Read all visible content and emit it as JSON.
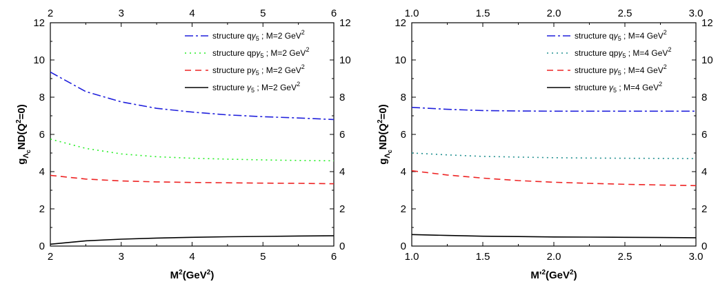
{
  "chart_data": [
    {
      "type": "line",
      "x_ticks": [
        "2",
        "3",
        "4",
        "5",
        "6"
      ],
      "y_ticks": [
        "0",
        "2",
        "4",
        "6",
        "8",
        "10",
        "12"
      ],
      "xlim": [
        2,
        6
      ],
      "ylim": [
        0,
        12
      ],
      "xlabel": {
        "main": "M",
        "sup": "2",
        "rest": "(GeV",
        "sup2": "2",
        "end": ")"
      },
      "ylabel": {
        "main": "g",
        "sub1": "Λ",
        "sub2": "c",
        "mid": "ND",
        "tail": "(Q",
        "sup": "2",
        "end": "=0)"
      },
      "legend_position": "top-right",
      "series": [
        {
          "name": "structure qγ5 ; M'=2 GeV2",
          "legend": {
            "pre": "structure q",
            "gamma": "γ",
            "g5": "5",
            "sep": " ;  ",
            "m": "M",
            "mrest": "=2 GeV",
            "msup": "2"
          },
          "color": "#1f1fdc",
          "dash": "12 4 3 4",
          "x": [
            2,
            2.5,
            3,
            3.5,
            4,
            4.5,
            5,
            5.5,
            6
          ],
          "y": [
            9.35,
            8.3,
            7.75,
            7.4,
            7.2,
            7.05,
            6.95,
            6.88,
            6.8
          ]
        },
        {
          "name": "structure qpγ5 ; M'=2 GeV2",
          "legend": {
            "pre": "structure qp",
            "gamma": "γ",
            "g5": "5",
            "sep": " ;  ",
            "m": "M",
            "mrest": "=2 GeV",
            "msup": "2"
          },
          "color": "#22ee22",
          "dash": "2 5",
          "x": [
            2,
            2.5,
            3,
            3.5,
            4,
            4.5,
            5,
            5.5,
            6
          ],
          "y": [
            5.75,
            5.25,
            4.95,
            4.8,
            4.72,
            4.67,
            4.63,
            4.6,
            4.58
          ]
        },
        {
          "name": "structure pγ5 ; M'=2 GeV2",
          "legend": {
            "pre": "structure p",
            "gamma": "γ",
            "g5": "5",
            "sep": " ;  ",
            "m": "M",
            "mrest": "=2 GeV",
            "msup": "2"
          },
          "color": "#ee2222",
          "dash": "9 6",
          "x": [
            2,
            2.5,
            3,
            3.5,
            4,
            4.5,
            5,
            5.5,
            6
          ],
          "y": [
            3.8,
            3.6,
            3.5,
            3.45,
            3.42,
            3.4,
            3.38,
            3.37,
            3.35
          ]
        },
        {
          "name": "structure γ5 ; M'=2 GeV2",
          "legend": {
            "pre": "structure ",
            "gamma": "γ",
            "g5": "5",
            "sep": " ;    ",
            "m": "M",
            "mrest": "=2 GeV",
            "msup": "2"
          },
          "color": "#000000",
          "dash": "",
          "x": [
            2,
            2.5,
            3,
            3.5,
            4,
            4.5,
            5,
            5.5,
            6
          ],
          "y": [
            0.1,
            0.28,
            0.37,
            0.43,
            0.47,
            0.5,
            0.52,
            0.54,
            0.55
          ]
        }
      ]
    },
    {
      "type": "line",
      "x_ticks": [
        "1.0",
        "1.5",
        "2.0",
        "2.5",
        "3.0"
      ],
      "y_ticks": [
        "0",
        "2",
        "4",
        "6",
        "8",
        "10",
        "12"
      ],
      "xlim": [
        1.0,
        3.0
      ],
      "ylim": [
        0,
        12
      ],
      "xlabel": {
        "main": "M'",
        "sup": "2",
        "rest": "(GeV",
        "sup2": "2",
        "end": ")"
      },
      "ylabel": {
        "main": "g",
        "sub1": "Λ",
        "sub2": "c",
        "mid": "ND",
        "tail": "(Q",
        "sup": "2",
        "end": "=0)"
      },
      "legend_position": "top-right",
      "series": [
        {
          "name": "structure qγ5 ; M=4 GeV2",
          "legend": {
            "pre": "structure q",
            "gamma": "γ",
            "g5": "5",
            "sep": " ;  ",
            "m": "M",
            "mrest": "=4 GeV",
            "msup": "2"
          },
          "color": "#1f1fdc",
          "dash": "12 4 3 4",
          "x": [
            1.0,
            1.25,
            1.5,
            1.75,
            2.0,
            2.25,
            2.5,
            2.75,
            3.0
          ],
          "y": [
            7.45,
            7.35,
            7.28,
            7.26,
            7.25,
            7.25,
            7.25,
            7.25,
            7.25
          ]
        },
        {
          "name": "structure qpγ5 ; M=4 GeV2",
          "legend": {
            "pre": "structure qp",
            "gamma": "γ",
            "g5": "5",
            "sep": " ;  ",
            "m": "M",
            "mrest": "=4 GeV",
            "msup": "2"
          },
          "color": "#1f8f8f",
          "dash": "2 5",
          "x": [
            1.0,
            1.25,
            1.5,
            1.75,
            2.0,
            2.25,
            2.5,
            2.75,
            3.0
          ],
          "y": [
            5.0,
            4.9,
            4.82,
            4.78,
            4.75,
            4.73,
            4.72,
            4.71,
            4.7
          ]
        },
        {
          "name": "structure pγ5 ; M=4 GeV2",
          "legend": {
            "pre": "structure p",
            "gamma": "γ",
            "g5": "5",
            "sep": " ;  ",
            "m": "M",
            "mrest": "=4 GeV",
            "msup": "2"
          },
          "color": "#ee2222",
          "dash": "9 6",
          "x": [
            1.0,
            1.25,
            1.5,
            1.75,
            2.0,
            2.25,
            2.5,
            2.75,
            3.0
          ],
          "y": [
            4.05,
            3.82,
            3.65,
            3.52,
            3.43,
            3.37,
            3.32,
            3.28,
            3.25
          ]
        },
        {
          "name": "structure γ5 ; M=4 GeV2",
          "legend": {
            "pre": "structure ",
            "gamma": "γ",
            "g5": "5",
            "sep": " ;  ",
            "m": "M",
            "mrest": "=4 GeV",
            "msup": "2"
          },
          "color": "#000000",
          "dash": "",
          "x": [
            1.0,
            1.25,
            1.5,
            1.75,
            2.0,
            2.25,
            2.5,
            2.75,
            3.0
          ],
          "y": [
            0.62,
            0.57,
            0.53,
            0.51,
            0.49,
            0.48,
            0.47,
            0.46,
            0.45
          ]
        }
      ]
    }
  ]
}
